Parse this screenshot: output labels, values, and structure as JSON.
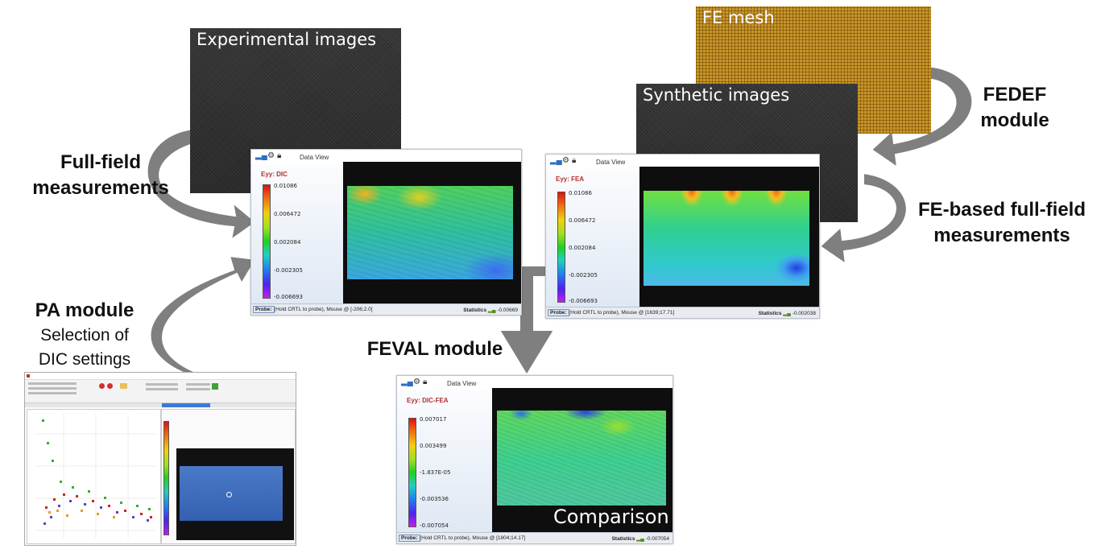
{
  "labels": {
    "full_field_1": "Full-field",
    "full_field_2": "measurements",
    "pa_module": "PA module",
    "pa_sub_1": "Selection of",
    "pa_sub_2": "DIC settings",
    "fedef_1": "FEDEF",
    "fedef_2": "module",
    "fe_based_1": "FE-based full-field",
    "fe_based_2": "measurements",
    "feval": "FEVAL module"
  },
  "images": {
    "experimental": "Experimental images",
    "fe_mesh": "FE mesh",
    "synthetic": "Synthetic images"
  },
  "windows": {
    "dic": {
      "view": "Data View",
      "title": "Eyy: DIC",
      "ticks": [
        "0.01086",
        "0.006472",
        "0.002084",
        "-0.002305",
        "-0.006693"
      ],
      "probe": "Probe:",
      "probe_text": "(Hold CRTL to probe), Mouse @ [-206;2.0]",
      "stats": "Statistics",
      "stats_val": "-0.00669"
    },
    "fea": {
      "view": "Data View",
      "title": "Eyy: FEA",
      "ticks": [
        "0.01086",
        "0.006472",
        "0.002084",
        "-0.002305",
        "-0.006693"
      ],
      "probe": "Probe:",
      "probe_text": "(Hold CRTL to probe), Mouse @ [1639;17.71]",
      "stats": "Statistics",
      "stats_val": "-0.002038"
    },
    "diff": {
      "view": "Data View",
      "title": "Eyy: DIC-FEA",
      "ticks": [
        "0.007017",
        "0.003499",
        "-1.837E-05",
        "-0.003536",
        "-0.007054"
      ],
      "probe": "Probe:",
      "probe_text": "(Hold CRTL to probe), Mouse @ [1804;14.17]",
      "stats": "Statistics",
      "stats_val": "-0.007054",
      "overlay": "Comparison"
    }
  },
  "colors": {
    "arrow_fill": "#7f7f7f",
    "arrow_stroke": "#ffffff",
    "mesh": "#c89528"
  }
}
